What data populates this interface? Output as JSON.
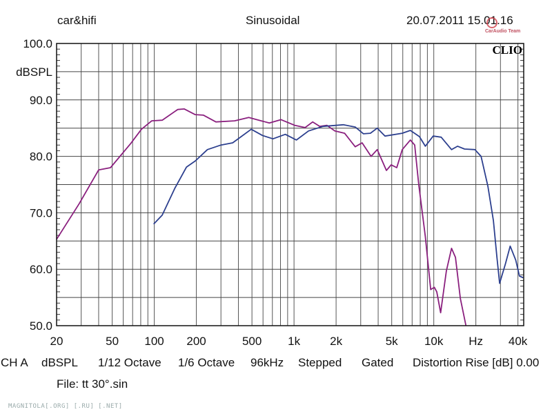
{
  "header": {
    "left": "car&hifi",
    "center": "Sinusoidal",
    "right": "20.07.2011 15.01.16"
  },
  "logo": {
    "text": "CarAudio Team",
    "brand": "CLIO"
  },
  "footer": {
    "channel": "CH A",
    "unit": "dBSPL",
    "smoothing1": "1/12 Octave",
    "smoothing2": "1/6 Octave",
    "rate": "96kHz",
    "mode": "Stepped",
    "gate": "Gated",
    "distortion": "Distortion Rise [dB] 0.00",
    "file": "File: tt 30°.sin"
  },
  "watermark": "MAGNITOLA[.ORG] [.RU] [.NET]",
  "chart_data": {
    "type": "line",
    "title": "Sinusoidal",
    "xlabel": "Hz",
    "ylabel": "dBSPL",
    "xscale": "log",
    "xlim": [
      20,
      44000
    ],
    "ylim": [
      50,
      100
    ],
    "grid": true,
    "y_ticks": [
      {
        "v": 100,
        "label": "100.0"
      },
      {
        "v": 90,
        "label": "90.0"
      },
      {
        "v": 80,
        "label": "80.0"
      },
      {
        "v": 70,
        "label": "70.0"
      },
      {
        "v": 60,
        "label": "60.0"
      },
      {
        "v": 50,
        "label": "50.0"
      }
    ],
    "x_ticks": [
      {
        "v": 20,
        "label": "20"
      },
      {
        "v": 50,
        "label": "50"
      },
      {
        "v": 100,
        "label": "100"
      },
      {
        "v": 200,
        "label": "200"
      },
      {
        "v": 500,
        "label": "500"
      },
      {
        "v": 1000,
        "label": "1k"
      },
      {
        "v": 2000,
        "label": "2k"
      },
      {
        "v": 5000,
        "label": "5k"
      },
      {
        "v": 10000,
        "label": "10k"
      },
      {
        "v": 20000,
        "label": "Hz"
      },
      {
        "v": 40000,
        "label": "40k"
      }
    ],
    "series": [
      {
        "name": "magenta",
        "color": "#8a1f7e",
        "x": [
          20,
          29,
          40,
          48.6,
          68,
          81,
          96,
          114,
          147,
          164,
          196,
          225,
          276,
          376,
          474,
          666,
          807,
          1010,
          1200,
          1360,
          1530,
          1720,
          1960,
          2300,
          2740,
          3070,
          3560,
          3940,
          4580,
          4960,
          5430,
          5950,
          6800,
          7300,
          7800,
          8700,
          9500,
          10100,
          10500,
          11200,
          12300,
          13400,
          14300,
          15500,
          17000
        ],
        "y": [
          65.3,
          71.6,
          77.6,
          78.0,
          82.3,
          84.8,
          86.3,
          86.4,
          88.3,
          88.4,
          87.4,
          87.3,
          86.1,
          86.3,
          86.9,
          85.9,
          86.5,
          85.5,
          85.1,
          86.1,
          85.3,
          85.5,
          84.5,
          84.1,
          81.7,
          82.4,
          80.0,
          81.2,
          77.5,
          78.5,
          78.0,
          81.2,
          82.9,
          82.0,
          75.1,
          65.8,
          56.4,
          56.8,
          56.0,
          52.3,
          59.7,
          63.7,
          62.1,
          54.8,
          50.0
        ]
      },
      {
        "name": "blue",
        "color": "#2c3f8e",
        "x": [
          99,
          114,
          140,
          170,
          197,
          240,
          300,
          364,
          408,
          494,
          594,
          707,
          866,
          1040,
          1270,
          1610,
          2250,
          2740,
          3140,
          3520,
          3940,
          4480,
          5950,
          6800,
          7900,
          8700,
          9900,
          11300,
          13400,
          14800,
          16600,
          19700,
          21800,
          24400,
          26700,
          28300,
          29600,
          32500,
          35200,
          38600,
          41000,
          43600
        ],
        "y": [
          68.0,
          69.6,
          74.3,
          78.1,
          79.2,
          81.2,
          82.0,
          82.4,
          83.3,
          84.8,
          83.7,
          83.1,
          83.9,
          82.9,
          84.5,
          85.3,
          85.6,
          85.2,
          84.0,
          84.1,
          85.0,
          83.6,
          84.1,
          84.6,
          83.5,
          81.8,
          83.6,
          83.4,
          81.2,
          81.8,
          81.3,
          81.2,
          80.0,
          74.7,
          68.6,
          62.1,
          57.5,
          60.9,
          64.1,
          61.6,
          58.8,
          58.5
        ]
      }
    ]
  }
}
